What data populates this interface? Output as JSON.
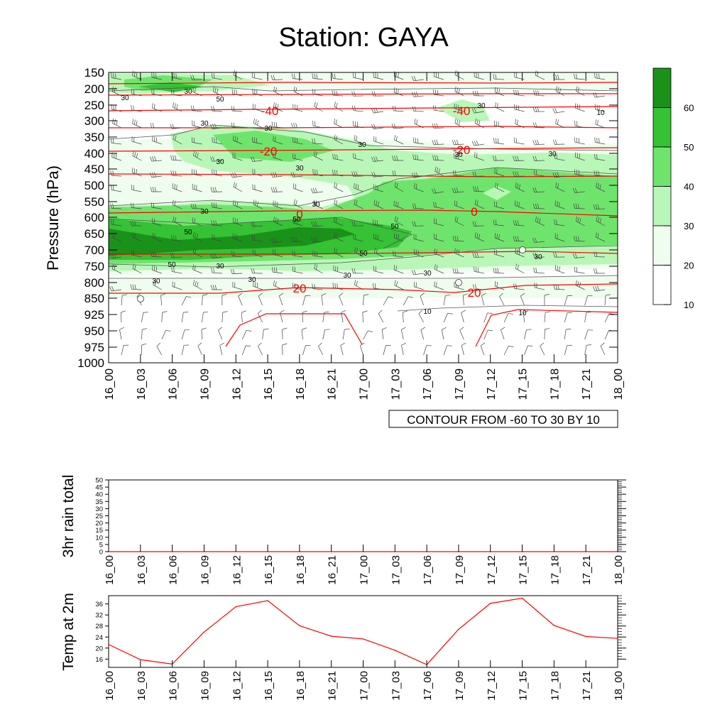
{
  "title": "Station: GAYA",
  "colors": {
    "green_levels": [
      "#ffffff",
      "#effdee",
      "#b9f7b8",
      "#6fe46c",
      "#35c234",
      "#1a921a"
    ],
    "temp_line": "#ff0000",
    "barb": "#444444"
  },
  "chart_data": [
    {
      "type": "heatmap",
      "name": "time-height cross-section",
      "ylabel": "Pressure (hPa)",
      "pressure_levels": [
        150,
        200,
        250,
        300,
        350,
        400,
        450,
        500,
        550,
        600,
        650,
        700,
        750,
        800,
        850,
        925,
        950,
        975,
        1000
      ],
      "time_labels": [
        "16_00",
        "16_03",
        "16_06",
        "16_09",
        "16_12",
        "16_15",
        "16_18",
        "16_21",
        "17_00",
        "17_03",
        "17_06",
        "17_09",
        "17_12",
        "17_15",
        "17_18",
        "17_21",
        "18_00"
      ],
      "shading_levels": [
        10,
        20,
        30,
        40,
        50,
        60
      ],
      "colorbar_labels": [
        "60",
        "50",
        "40",
        "30",
        "20",
        "10"
      ],
      "contour_info": "CONTOUR FROM -60 TO 30 BY 10",
      "temperature_labels": [
        "-40",
        "-40",
        "-20",
        "-20",
        "0",
        "0",
        "20",
        "20"
      ],
      "rh_labels": [
        "30",
        "30",
        "50",
        "30",
        "30",
        "30",
        "30",
        "30",
        "30",
        "30",
        "30",
        "30",
        "30",
        "50",
        "50",
        "50",
        "50",
        "50",
        "30",
        "30",
        "30",
        "30",
        "30",
        "30",
        "10",
        "10",
        "10"
      ]
    },
    {
      "type": "line",
      "name": "3hr rain total",
      "ylabel": "3hr rain total",
      "x": [
        "16_00",
        "16_03",
        "16_06",
        "16_09",
        "16_12",
        "16_15",
        "16_18",
        "16_21",
        "17_00",
        "17_03",
        "17_06",
        "17_09",
        "17_12",
        "17_15",
        "17_18",
        "17_21",
        "18_00"
      ],
      "values": [
        0,
        0,
        0,
        0,
        0,
        0,
        0,
        0,
        0,
        0,
        0,
        0,
        0,
        0,
        0,
        0,
        0
      ],
      "yticks": [
        0,
        5,
        10,
        15,
        20,
        25,
        30,
        35,
        40,
        45,
        50
      ],
      "ylim": [
        0,
        50
      ]
    },
    {
      "type": "line",
      "name": "Temp at 2m",
      "ylabel": "Temp at 2m",
      "x": [
        "16_00",
        "16_03",
        "16_06",
        "16_09",
        "16_12",
        "16_15",
        "16_18",
        "16_21",
        "17_00",
        "17_03",
        "17_06",
        "17_09",
        "17_12",
        "17_15",
        "17_18",
        "17_21",
        "18_00"
      ],
      "values": [
        21.3,
        15.8,
        14.2,
        25.8,
        35.0,
        37.2,
        28.1,
        24.3,
        23.3,
        19.2,
        14.0,
        26.8,
        36.2,
        38.1,
        28.2,
        24.2,
        23.5
      ],
      "yticks": [
        16,
        20,
        24,
        28,
        32,
        36
      ],
      "ylim": [
        13,
        39
      ]
    }
  ]
}
